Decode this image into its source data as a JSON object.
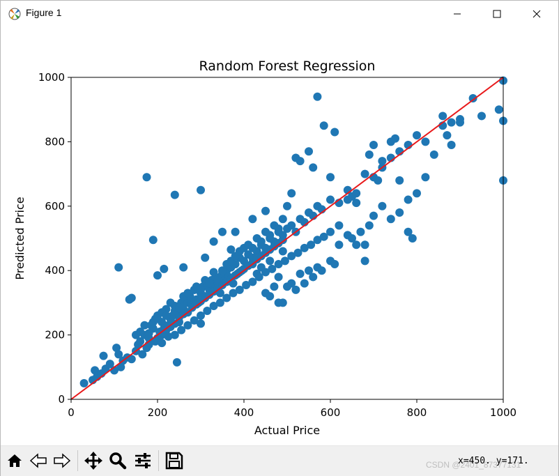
{
  "window": {
    "title": "Figure 1"
  },
  "status": {
    "coords": "x=450. y=171.",
    "watermark": "CSDN @2401_87377131"
  },
  "colors": {
    "points": "#1f77b4",
    "line": "#e8191b"
  },
  "chart_data": {
    "type": "scatter",
    "title": "Random Forest Regression",
    "xlabel": "Actual Price",
    "ylabel": "Predicted Price",
    "xlim": [
      0,
      1000
    ],
    "ylim": [
      0,
      1000
    ],
    "xticks": [
      0,
      200,
      400,
      600,
      800,
      1000
    ],
    "yticks": [
      0,
      200,
      400,
      600,
      800,
      1000
    ],
    "grid": false,
    "reference_line": {
      "x": [
        0,
        1000
      ],
      "y": [
        0,
        1000
      ]
    },
    "points": [
      [
        30,
        50
      ],
      [
        50,
        60
      ],
      [
        55,
        90
      ],
      [
        60,
        70
      ],
      [
        70,
        80
      ],
      [
        75,
        135
      ],
      [
        80,
        95
      ],
      [
        90,
        110
      ],
      [
        100,
        90
      ],
      [
        105,
        160
      ],
      [
        110,
        140
      ],
      [
        115,
        100
      ],
      [
        120,
        120
      ],
      [
        130,
        130
      ],
      [
        140,
        125
      ],
      [
        150,
        150
      ],
      [
        155,
        170
      ],
      [
        160,
        180
      ],
      [
        165,
        140
      ],
      [
        170,
        200
      ],
      [
        175,
        160
      ],
      [
        180,
        190
      ],
      [
        185,
        230
      ],
      [
        190,
        220
      ],
      [
        195,
        250
      ],
      [
        200,
        260
      ],
      [
        205,
        210
      ],
      [
        210,
        240
      ],
      [
        215,
        220
      ],
      [
        220,
        280
      ],
      [
        225,
        230
      ],
      [
        230,
        250
      ],
      [
        235,
        260
      ],
      [
        240,
        290
      ],
      [
        245,
        270
      ],
      [
        250,
        240
      ],
      [
        255,
        300
      ],
      [
        260,
        280
      ],
      [
        265,
        310
      ],
      [
        270,
        300
      ],
      [
        275,
        320
      ],
      [
        280,
        290
      ],
      [
        285,
        340
      ],
      [
        290,
        310
      ],
      [
        295,
        300
      ],
      [
        300,
        330
      ],
      [
        305,
        350
      ],
      [
        310,
        320
      ],
      [
        315,
        360
      ],
      [
        320,
        340
      ],
      [
        325,
        370
      ],
      [
        330,
        350
      ],
      [
        335,
        380
      ],
      [
        340,
        360
      ],
      [
        345,
        330
      ],
      [
        350,
        390
      ],
      [
        355,
        370
      ],
      [
        360,
        400
      ],
      [
        365,
        380
      ],
      [
        370,
        410
      ],
      [
        375,
        360
      ],
      [
        380,
        420
      ],
      [
        385,
        390
      ],
      [
        390,
        440
      ],
      [
        395,
        400
      ],
      [
        400,
        430
      ],
      [
        410,
        450
      ],
      [
        420,
        440
      ],
      [
        430,
        460
      ],
      [
        440,
        480
      ],
      [
        450,
        470
      ],
      [
        460,
        500
      ],
      [
        470,
        490
      ],
      [
        480,
        520
      ],
      [
        490,
        510
      ],
      [
        500,
        530
      ],
      [
        510,
        540
      ],
      [
        520,
        520
      ],
      [
        530,
        560
      ],
      [
        540,
        550
      ],
      [
        550,
        580
      ],
      [
        560,
        570
      ],
      [
        570,
        600
      ],
      [
        580,
        590
      ],
      [
        600,
        620
      ],
      [
        620,
        610
      ],
      [
        640,
        650
      ],
      [
        660,
        640
      ],
      [
        680,
        700
      ],
      [
        700,
        690
      ],
      [
        720,
        740
      ],
      [
        740,
        750
      ],
      [
        760,
        770
      ],
      [
        780,
        790
      ],
      [
        800,
        820
      ],
      [
        820,
        800
      ],
      [
        860,
        850
      ],
      [
        880,
        860
      ],
      [
        900,
        870
      ],
      [
        950,
        880
      ],
      [
        990,
        900
      ],
      [
        1000,
        990
      ],
      [
        1000,
        680
      ],
      [
        1000,
        865
      ],
      [
        110,
        410
      ],
      [
        135,
        310
      ],
      [
        140,
        315
      ],
      [
        175,
        690
      ],
      [
        190,
        495
      ],
      [
        240,
        635
      ],
      [
        300,
        650
      ],
      [
        245,
        115
      ],
      [
        285,
        340
      ],
      [
        260,
        410
      ],
      [
        200,
        385
      ],
      [
        215,
        405
      ],
      [
        300,
        235
      ],
      [
        310,
        440
      ],
      [
        330,
        490
      ],
      [
        350,
        520
      ],
      [
        370,
        465
      ],
      [
        380,
        520
      ],
      [
        420,
        560
      ],
      [
        450,
        585
      ],
      [
        460,
        430
      ],
      [
        480,
        300
      ],
      [
        490,
        460
      ],
      [
        500,
        600
      ],
      [
        510,
        640
      ],
      [
        520,
        750
      ],
      [
        530,
        740
      ],
      [
        550,
        770
      ],
      [
        560,
        720
      ],
      [
        570,
        940
      ],
      [
        585,
        850
      ],
      [
        600,
        690
      ],
      [
        610,
        830
      ],
      [
        620,
        540
      ],
      [
        640,
        620
      ],
      [
        650,
        630
      ],
      [
        660,
        610
      ],
      [
        680,
        430
      ],
      [
        690,
        760
      ],
      [
        700,
        790
      ],
      [
        710,
        680
      ],
      [
        720,
        720
      ],
      [
        740,
        800
      ],
      [
        750,
        810
      ],
      [
        760,
        680
      ],
      [
        780,
        520
      ],
      [
        790,
        500
      ],
      [
        820,
        690
      ],
      [
        840,
        760
      ],
      [
        860,
        880
      ],
      [
        870,
        820
      ],
      [
        880,
        790
      ],
      [
        900,
        860
      ],
      [
        930,
        935
      ],
      [
        420,
        420
      ],
      [
        430,
        390
      ],
      [
        440,
        410
      ],
      [
        450,
        330
      ],
      [
        460,
        320
      ],
      [
        470,
        350
      ],
      [
        480,
        380
      ],
      [
        490,
        300
      ],
      [
        500,
        350
      ],
      [
        510,
        360
      ],
      [
        520,
        340
      ],
      [
        530,
        390
      ],
      [
        540,
        360
      ],
      [
        550,
        400
      ],
      [
        560,
        380
      ],
      [
        570,
        410
      ],
      [
        580,
        400
      ],
      [
        600,
        430
      ],
      [
        610,
        420
      ],
      [
        620,
        480
      ],
      [
        640,
        510
      ],
      [
        650,
        500
      ],
      [
        660,
        480
      ],
      [
        670,
        520
      ],
      [
        680,
        480
      ],
      [
        690,
        540
      ],
      [
        700,
        570
      ],
      [
        720,
        600
      ],
      [
        740,
        560
      ],
      [
        760,
        580
      ],
      [
        780,
        620
      ],
      [
        800,
        640
      ],
      [
        150,
        200
      ],
      [
        160,
        210
      ],
      [
        170,
        230
      ],
      [
        180,
        205
      ],
      [
        190,
        240
      ],
      [
        200,
        250
      ],
      [
        210,
        270
      ],
      [
        220,
        260
      ],
      [
        230,
        300
      ],
      [
        240,
        275
      ],
      [
        250,
        285
      ],
      [
        260,
        320
      ],
      [
        270,
        330
      ],
      [
        280,
        300
      ],
      [
        290,
        350
      ],
      [
        300,
        340
      ],
      [
        310,
        370
      ],
      [
        320,
        360
      ],
      [
        330,
        395
      ],
      [
        340,
        370
      ],
      [
        350,
        400
      ],
      [
        360,
        420
      ],
      [
        370,
        430
      ],
      [
        380,
        445
      ],
      [
        390,
        460
      ],
      [
        400,
        470
      ],
      [
        410,
        480
      ],
      [
        420,
        470
      ],
      [
        430,
        500
      ],
      [
        440,
        490
      ],
      [
        450,
        520
      ],
      [
        460,
        510
      ],
      [
        470,
        540
      ],
      [
        480,
        530
      ],
      [
        490,
        560
      ],
      [
        200,
        190
      ],
      [
        210,
        200
      ],
      [
        220,
        215
      ],
      [
        230,
        225
      ],
      [
        240,
        235
      ],
      [
        250,
        255
      ],
      [
        260,
        265
      ],
      [
        270,
        270
      ],
      [
        280,
        285
      ],
      [
        290,
        295
      ],
      [
        300,
        305
      ],
      [
        310,
        315
      ],
      [
        320,
        325
      ],
      [
        330,
        335
      ],
      [
        340,
        345
      ],
      [
        350,
        355
      ],
      [
        360,
        365
      ],
      [
        370,
        375
      ],
      [
        380,
        385
      ],
      [
        390,
        395
      ],
      [
        400,
        405
      ],
      [
        410,
        415
      ],
      [
        420,
        425
      ],
      [
        430,
        435
      ],
      [
        440,
        445
      ],
      [
        450,
        455
      ],
      [
        460,
        465
      ],
      [
        470,
        475
      ],
      [
        480,
        485
      ],
      [
        490,
        495
      ],
      [
        180,
        170
      ],
      [
        195,
        180
      ],
      [
        210,
        175
      ],
      [
        225,
        195
      ],
      [
        240,
        200
      ],
      [
        255,
        215
      ],
      [
        270,
        230
      ],
      [
        285,
        245
      ],
      [
        300,
        260
      ],
      [
        315,
        275
      ],
      [
        330,
        290
      ],
      [
        345,
        300
      ],
      [
        360,
        315
      ],
      [
        375,
        330
      ],
      [
        390,
        340
      ],
      [
        405,
        355
      ],
      [
        420,
        365
      ],
      [
        435,
        380
      ],
      [
        450,
        395
      ],
      [
        465,
        405
      ],
      [
        480,
        420
      ],
      [
        495,
        430
      ],
      [
        510,
        445
      ],
      [
        525,
        455
      ],
      [
        540,
        470
      ],
      [
        555,
        480
      ],
      [
        570,
        495
      ],
      [
        585,
        505
      ],
      [
        600,
        520
      ]
    ]
  }
}
